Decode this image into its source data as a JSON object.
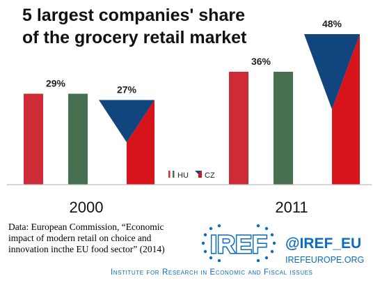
{
  "chart_data": {
    "type": "bar",
    "title_lines": [
      "5 largest companies' share",
      "of the grocery retail market"
    ],
    "categories": [
      "2000",
      "2011"
    ],
    "series": [
      {
        "name": "HU",
        "values": [
          29,
          36
        ],
        "colors": [
          "#ce2b37",
          "#ffffff",
          "#477050"
        ]
      },
      {
        "name": "CZ",
        "values": [
          27,
          48
        ],
        "colors": [
          "#11457e",
          "#ffffff",
          "#d7141a"
        ]
      }
    ],
    "value_labels": [
      "29%",
      "27%",
      "36%",
      "48%"
    ],
    "ylim": [
      0,
      50
    ],
    "legend_position": "center-bottom"
  },
  "source": "Data: European Commission, “Economic impact of modern retail on choice and innovation incthe EU food sector” (2014)",
  "brand": {
    "logo_text": "IREF",
    "handle": "@IREF_EU",
    "website": "IREFEUROPE.ORG",
    "institute": "Institute for Research in Economic and Fiscal issues",
    "color": "#0a6bbf"
  }
}
